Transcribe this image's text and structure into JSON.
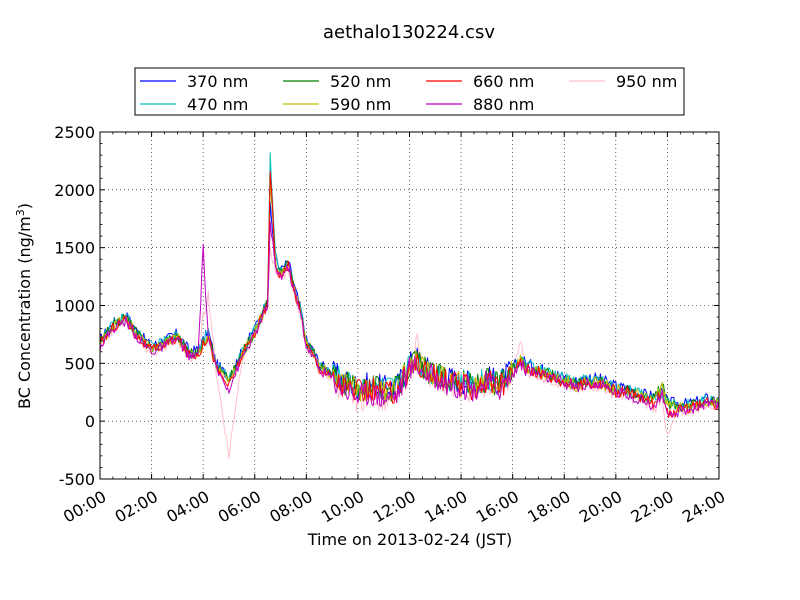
{
  "chart_data": {
    "type": "line",
    "title": "aethalo130224.csv",
    "xlabel": "Time on 2013-02-24 (JST)",
    "ylabel": "BC Concentration (ng/m",
    "ylabel_superscript": "3",
    "ylabel_close": ")",
    "xlim": [
      "00:00",
      "24:00"
    ],
    "ylim": [
      -500,
      2500
    ],
    "x_ticks": [
      "00:00",
      "02:00",
      "04:00",
      "06:00",
      "08:00",
      "10:00",
      "12:00",
      "14:00",
      "16:00",
      "18:00",
      "20:00",
      "22:00",
      "24:00"
    ],
    "y_ticks": [
      "-500",
      "0",
      "500",
      "1000",
      "1500",
      "2000",
      "2500"
    ],
    "grid": true,
    "legend_position": "top",
    "x_hours": [
      0.0,
      0.5,
      1.0,
      1.5,
      2.0,
      2.5,
      3.0,
      3.5,
      3.8,
      4.0,
      4.2,
      4.5,
      5.0,
      5.5,
      6.0,
      6.3,
      6.5,
      6.6,
      6.8,
      7.0,
      7.3,
      7.5,
      7.8,
      8.0,
      8.3,
      8.5,
      9.0,
      9.5,
      10.0,
      10.5,
      11.0,
      11.5,
      12.0,
      12.3,
      12.5,
      13.0,
      13.5,
      14.0,
      14.5,
      15.0,
      15.5,
      16.0,
      16.3,
      16.5,
      17.0,
      17.5,
      18.0,
      18.5,
      19.0,
      19.5,
      20.0,
      20.5,
      21.0,
      21.5,
      21.8,
      22.0,
      22.3,
      22.5,
      23.0,
      23.5,
      24.0
    ],
    "series": [
      {
        "name": "370 nm",
        "color": "#0000ff",
        "values": [
          700,
          850,
          920,
          760,
          650,
          700,
          760,
          600,
          620,
          700,
          780,
          500,
          380,
          600,
          800,
          950,
          1050,
          1850,
          1400,
          1300,
          1380,
          1200,
          950,
          700,
          600,
          500,
          420,
          350,
          300,
          320,
          290,
          300,
          500,
          550,
          480,
          420,
          380,
          350,
          330,
          380,
          340,
          450,
          550,
          500,
          460,
          420,
          380,
          340,
          380,
          350,
          300,
          280,
          240,
          220,
          250,
          170,
          160,
          150,
          160,
          200,
          180
        ]
      },
      {
        "name": "470 nm",
        "color": "#00bfbf",
        "values": [
          690,
          840,
          910,
          750,
          640,
          690,
          750,
          590,
          610,
          690,
          770,
          490,
          370,
          590,
          790,
          940,
          1040,
          2300,
          1420,
          1290,
          1370,
          1190,
          940,
          690,
          590,
          490,
          410,
          340,
          290,
          310,
          280,
          290,
          490,
          540,
          470,
          410,
          370,
          340,
          320,
          370,
          330,
          440,
          540,
          490,
          450,
          410,
          370,
          330,
          370,
          340,
          290,
          270,
          230,
          210,
          240,
          160,
          150,
          140,
          150,
          190,
          170
        ]
      },
      {
        "name": "520 nm",
        "color": "#008000",
        "values": [
          680,
          830,
          900,
          740,
          630,
          680,
          740,
          580,
          600,
          680,
          760,
          480,
          360,
          580,
          780,
          930,
          1030,
          2150,
          1380,
          1280,
          1360,
          1180,
          930,
          680,
          580,
          480,
          400,
          330,
          280,
          300,
          270,
          280,
          480,
          530,
          460,
          400,
          360,
          330,
          310,
          360,
          320,
          430,
          530,
          480,
          440,
          400,
          360,
          320,
          360,
          330,
          280,
          260,
          220,
          200,
          320,
          150,
          140,
          130,
          140,
          180,
          160
        ]
      },
      {
        "name": "590 nm",
        "color": "#bfbf00",
        "values": [
          670,
          820,
          890,
          730,
          620,
          670,
          730,
          570,
          590,
          670,
          750,
          470,
          350,
          570,
          770,
          920,
          1020,
          2100,
          1370,
          1270,
          1350,
          1170,
          920,
          670,
          570,
          470,
          390,
          320,
          270,
          290,
          260,
          270,
          470,
          520,
          450,
          390,
          350,
          320,
          300,
          350,
          310,
          420,
          520,
          470,
          430,
          390,
          350,
          310,
          350,
          320,
          270,
          250,
          210,
          190,
          300,
          140,
          130,
          120,
          130,
          170,
          150
        ]
      },
      {
        "name": "660 nm",
        "color": "#ff0000",
        "values": [
          660,
          810,
          880,
          720,
          610,
          660,
          720,
          560,
          580,
          660,
          740,
          460,
          300,
          560,
          760,
          910,
          1010,
          2200,
          1360,
          1260,
          1340,
          1160,
          910,
          660,
          560,
          460,
          380,
          300,
          250,
          270,
          240,
          250,
          460,
          510,
          440,
          380,
          340,
          310,
          290,
          340,
          300,
          410,
          510,
          460,
          420,
          380,
          340,
          300,
          340,
          310,
          260,
          240,
          200,
          150,
          280,
          60,
          80,
          100,
          120,
          160,
          140
        ]
      },
      {
        "name": "880 nm",
        "color": "#bf00bf",
        "values": [
          650,
          800,
          870,
          710,
          600,
          650,
          710,
          550,
          570,
          1490,
          730,
          450,
          280,
          550,
          750,
          900,
          1000,
          1700,
          1330,
          1250,
          1330,
          1150,
          900,
          650,
          550,
          450,
          370,
          280,
          220,
          250,
          210,
          230,
          450,
          500,
          430,
          370,
          330,
          300,
          280,
          330,
          290,
          400,
          500,
          450,
          410,
          370,
          330,
          290,
          330,
          300,
          250,
          230,
          190,
          120,
          250,
          20,
          60,
          90,
          110,
          150,
          130
        ]
      },
      {
        "name": "950 nm",
        "color": "#ffc0cb",
        "values": [
          640,
          790,
          860,
          700,
          590,
          640,
          700,
          540,
          560,
          900,
          1100,
          440,
          -300,
          540,
          740,
          890,
          990,
          1500,
          1300,
          1240,
          1320,
          1140,
          890,
          640,
          540,
          440,
          360,
          260,
          180,
          230,
          190,
          210,
          440,
          700,
          420,
          360,
          320,
          290,
          270,
          320,
          280,
          390,
          700,
          440,
          400,
          360,
          320,
          280,
          320,
          290,
          240,
          220,
          180,
          100,
          220,
          -150,
          40,
          80,
          100,
          140,
          120
        ]
      }
    ]
  }
}
